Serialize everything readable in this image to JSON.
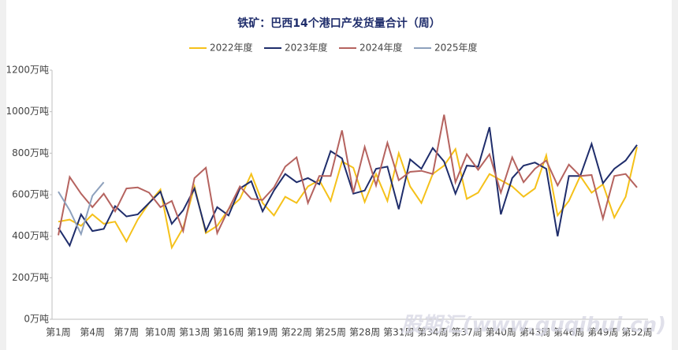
{
  "chart_data": {
    "type": "line",
    "title": "铁矿：巴西14个港口产发货量合计（周）",
    "watermark": "股期汇(www.guqihui.cn)",
    "categories": [
      "第1周",
      null,
      null,
      "第4周",
      null,
      null,
      "第7周",
      null,
      null,
      "第10周",
      null,
      null,
      "第13周",
      null,
      null,
      "第16周",
      null,
      null,
      "第19周",
      null,
      null,
      "第22周",
      null,
      null,
      "第25周",
      null,
      null,
      "第28周",
      null,
      null,
      "第31周",
      null,
      null,
      "第34周",
      null,
      null,
      "第37周",
      null,
      null,
      "第40周",
      null,
      null,
      "第43周",
      null,
      null,
      "第46周",
      null,
      null,
      "第49周",
      null,
      null,
      "第52周"
    ],
    "series": [
      {
        "name": "2022年度",
        "color": "#f5c11a",
        "values": [
          470,
          480,
          450,
          505,
          460,
          470,
          375,
          480,
          560,
          625,
          345,
          440,
          640,
          415,
          450,
          530,
          580,
          700,
          560,
          500,
          590,
          560,
          640,
          670,
          570,
          760,
          730,
          565,
          700,
          570,
          800,
          640,
          560,
          700,
          740,
          820,
          580,
          610,
          700,
          670,
          640,
          590,
          630,
          790,
          500,
          570,
          690,
          610,
          650,
          490,
          590,
          830
        ]
      },
      {
        "name": "2023年度",
        "color": "#1f2d6b",
        "values": [
          440,
          355,
          505,
          425,
          435,
          545,
          495,
          505,
          560,
          615,
          460,
          525,
          630,
          425,
          540,
          500,
          630,
          665,
          520,
          620,
          700,
          660,
          680,
          650,
          810,
          775,
          605,
          620,
          725,
          735,
          530,
          770,
          725,
          825,
          760,
          605,
          740,
          735,
          925,
          505,
          680,
          740,
          755,
          725,
          400,
          690,
          690,
          845,
          655,
          725,
          765,
          840
        ]
      },
      {
        "name": "2024年度",
        "color": "#b5635f",
        "values": [
          405,
          685,
          605,
          540,
          605,
          520,
          630,
          635,
          610,
          540,
          570,
          425,
          680,
          730,
          415,
          530,
          640,
          580,
          575,
          635,
          735,
          780,
          560,
          690,
          690,
          910,
          610,
          830,
          645,
          850,
          670,
          710,
          715,
          700,
          985,
          660,
          795,
          720,
          795,
          610,
          780,
          660,
          725,
          765,
          645,
          745,
          690,
          695,
          485,
          690,
          700,
          635
        ]
      },
      {
        "name": "2025年度",
        "color": "#8ea1bd",
        "values": [
          615,
          525,
          410,
          595,
          660,
          null,
          null,
          null,
          null,
          null,
          null,
          null,
          null,
          null,
          null,
          null,
          null,
          null,
          null,
          null,
          null,
          null,
          null,
          null,
          null,
          null,
          null,
          null,
          null,
          null,
          null,
          null,
          null,
          null,
          null,
          null,
          null,
          null,
          null,
          null,
          null,
          null,
          null,
          null,
          null,
          null,
          null,
          null,
          null,
          null,
          null,
          null
        ]
      }
    ],
    "ylim": [
      0,
      1200
    ],
    "yticks": [
      {
        "value": 0,
        "label": "0万吨"
      },
      {
        "value": 200,
        "label": "200万吨"
      },
      {
        "value": 400,
        "label": "400万吨"
      },
      {
        "value": 600,
        "label": "600万吨"
      },
      {
        "value": 800,
        "label": "800万吨"
      },
      {
        "value": 1000,
        "label": "1000万吨"
      },
      {
        "value": 1200,
        "label": "1200万吨"
      }
    ],
    "grid": false,
    "legend": "top"
  }
}
